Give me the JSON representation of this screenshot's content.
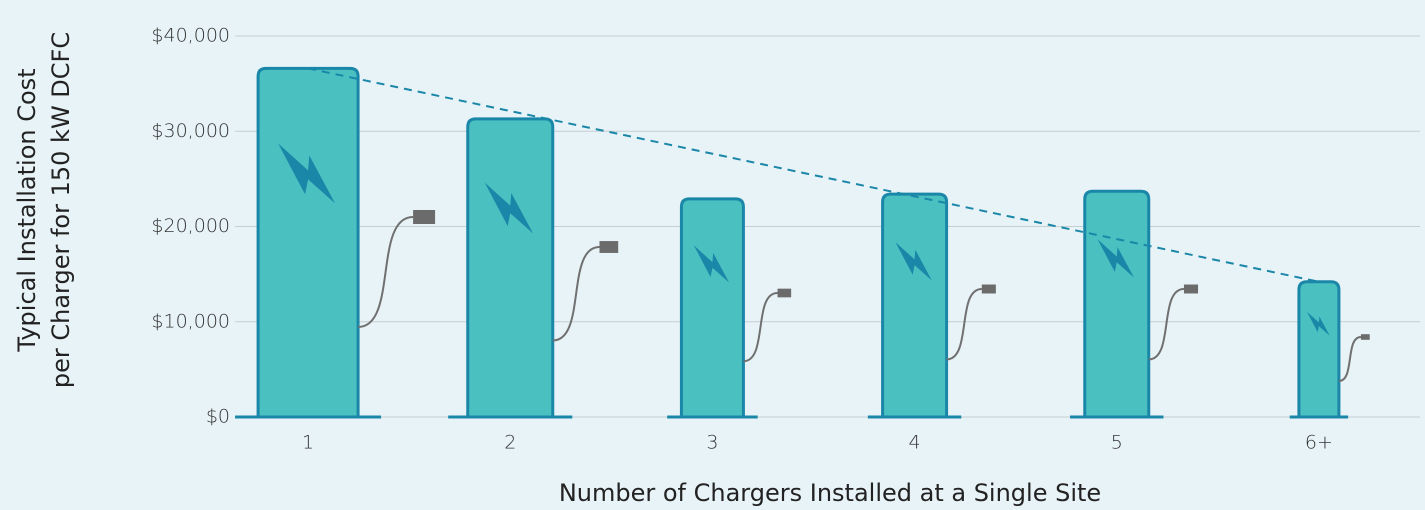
{
  "chart_data": {
    "type": "bar",
    "y_label": [
      "Typical Installation Cost",
      "per Charger for 150 kW DCFC"
    ],
    "x_label": "Number of Chargers Installed at a Single Site",
    "categories": [
      "1",
      "2",
      "3",
      "4",
      "5",
      "6+"
    ],
    "values": [
      36600,
      31300,
      22900,
      23400,
      23700,
      14200
    ],
    "color": "#4bc0c0",
    "ylim": [
      0,
      40000
    ],
    "yticks": [
      {
        "value": 0,
        "label": "$0"
      },
      {
        "value": 10000,
        "label": "$10,000"
      },
      {
        "value": 20000,
        "label": "$20,000"
      },
      {
        "value": 30000,
        "label": "$30,000"
      },
      {
        "value": 40000,
        "label": "$40,000"
      }
    ],
    "grid": true
  }
}
